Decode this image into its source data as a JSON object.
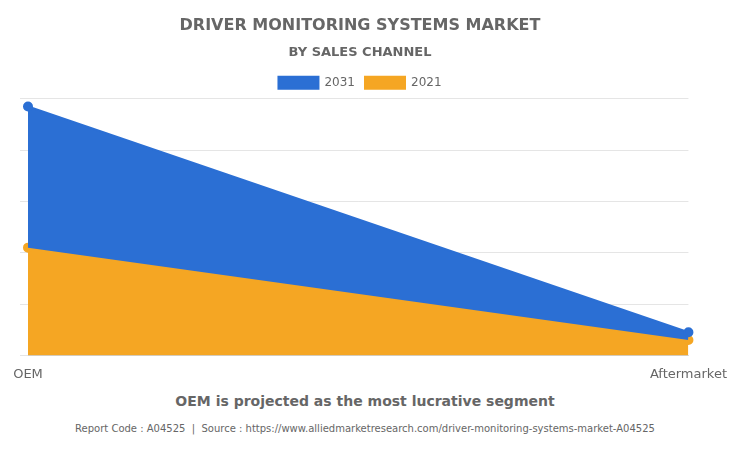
{
  "chart_data": {
    "type": "area",
    "title": "DRIVER MONITORING SYSTEMS MARKET",
    "subtitle": "BY SALES CHANNEL",
    "annotations": [
      "OEM is projected as the most lucrative segment",
      "Report Code : A04525  |  Source : https://www.alliedmarketresearch.com/driver-monitoring-systems-market-A04525"
    ],
    "categories": [
      "OEM",
      "Aftermarket"
    ],
    "series": [
      {
        "name": "2021",
        "color": "#F5A623",
        "values": [
          0.42,
          0.06
        ]
      },
      {
        "name": "2031",
        "color": "#2B6FD4",
        "values": [
          0.97,
          0.09
        ]
      }
    ],
    "ylim": [
      0,
      1.0
    ],
    "yticks": [
      0,
      0.2,
      0.4,
      0.6,
      0.8,
      1.0
    ],
    "grid": true,
    "legend": "top",
    "tick_labels": "x",
    "marker": "circle"
  }
}
